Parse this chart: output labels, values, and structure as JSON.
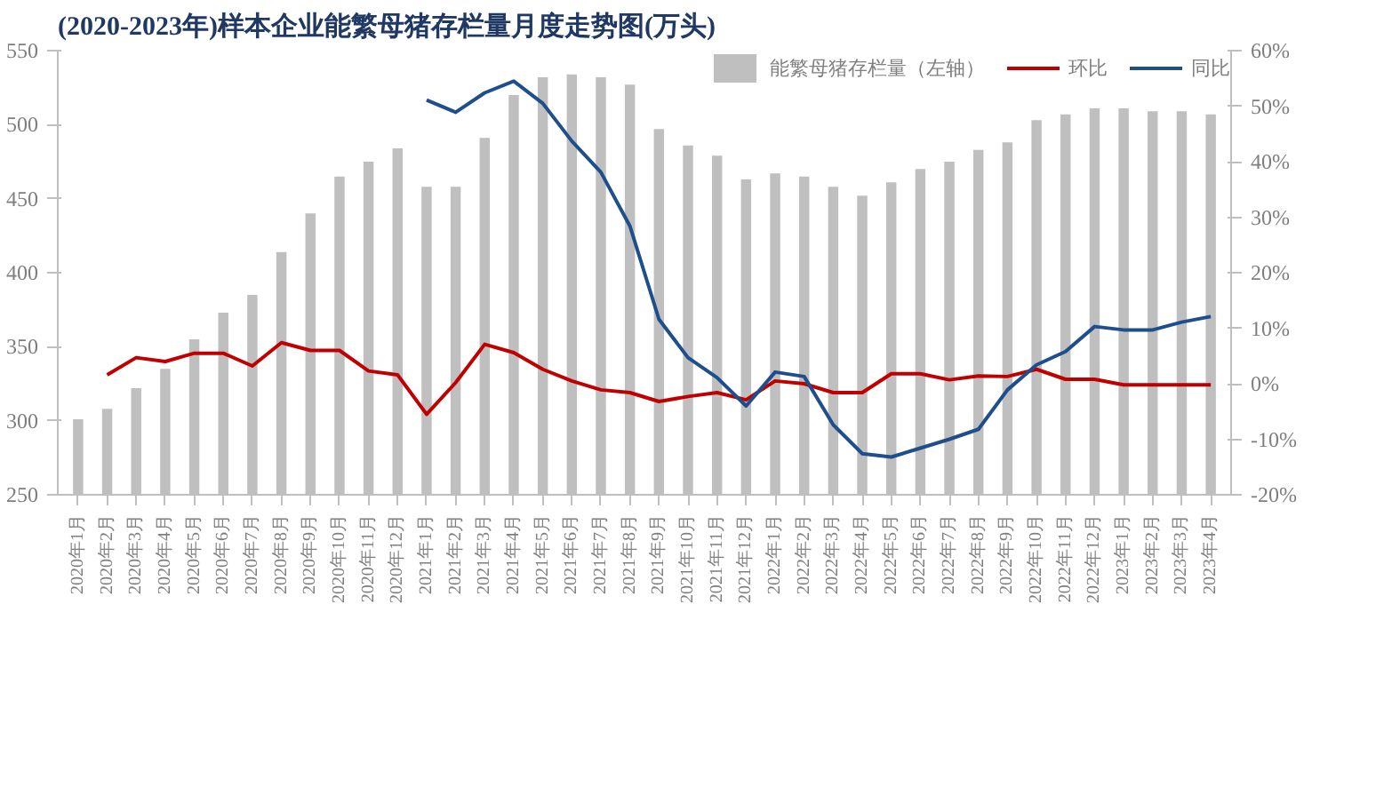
{
  "chart_data": {
    "type": "bar",
    "title": "(2020-2023年)样本企业能繁母猪存栏量月度走势图(万头)",
    "categories": [
      "2020年1月",
      "2020年2月",
      "2020年3月",
      "2020年4月",
      "2020年5月",
      "2020年6月",
      "2020年7月",
      "2020年8月",
      "2020年9月",
      "2020年10月",
      "2020年11月",
      "2020年12月",
      "2021年1月",
      "2021年2月",
      "2021年3月",
      "2021年4月",
      "2021年5月",
      "2021年6月",
      "2021年7月",
      "2021年8月",
      "2021年9月",
      "2021年10月",
      "2021年11月",
      "2021年12月",
      "2022年1月",
      "2022年2月",
      "2022年3月",
      "2022年4月",
      "2022年5月",
      "2022年6月",
      "2022年7月",
      "2022年8月",
      "2022年9月",
      "2022年10月",
      "2022年11月",
      "2022年12月",
      "2023年1月",
      "2023年2月",
      "2023年3月",
      "2023年4月"
    ],
    "series": [
      {
        "name": "能繁母猪存栏量（左轴）",
        "color": "#bfbfbf",
        "values": [
          301,
          308,
          322,
          335,
          355,
          373,
          385,
          414,
          440,
          465,
          475,
          484,
          458,
          458,
          491,
          520,
          532,
          534,
          532,
          527,
          497,
          486,
          479,
          463,
          467,
          465,
          458,
          452,
          461,
          470,
          475,
          483,
          488,
          503,
          507,
          511,
          511,
          509,
          509,
          507
        ]
      },
      {
        "name": "环比",
        "type": "line",
        "axis": "y2",
        "color": "#c00000",
        "values": [
          null,
          1.6,
          4.7,
          4.0,
          5.5,
          5.5,
          3.2,
          7.4,
          6.0,
          6.0,
          2.3,
          1.6,
          -5.5,
          0.2,
          7.1,
          5.6,
          2.6,
          0.5,
          -1.1,
          -1.6,
          -3.2,
          -2.3,
          -1.6,
          -2.9,
          0.5,
          0,
          -1.6,
          -1.6,
          1.8,
          1.8,
          0.7,
          1.4,
          1.3,
          2.6,
          0.8,
          0.8,
          -0.2,
          -0.2,
          -0.2,
          -0.2
        ]
      },
      {
        "name": "同比",
        "type": "line",
        "axis": "y2",
        "color": "#1f4e8c",
        "values": [
          null,
          null,
          null,
          null,
          null,
          null,
          null,
          null,
          null,
          null,
          null,
          null,
          51.1,
          48.9,
          52.4,
          54.5,
          50.5,
          43.7,
          38.1,
          28.4,
          11.6,
          4.7,
          1.1,
          -4.0,
          2.1,
          1.3,
          -7.4,
          -12.6,
          -13.2,
          -11.6,
          -10.0,
          -8.2,
          -1.1,
          3.4,
          5.8,
          10.3,
          9.7,
          9.7,
          11.1,
          12.1
        ]
      }
    ],
    "ylim": [
      250,
      550
    ],
    "yticks": [
      250,
      300,
      350,
      400,
      450,
      500,
      550
    ],
    "y2lim": [
      -20,
      60
    ],
    "y2ticks": [
      {
        "value": -20,
        "label": "-20%"
      },
      {
        "value": -10,
        "label": "-10%"
      },
      {
        "value": 0,
        "label": "0%"
      },
      {
        "value": 10,
        "label": "10%"
      },
      {
        "value": 20,
        "label": "20%"
      },
      {
        "value": 30,
        "label": "30%"
      },
      {
        "value": 40,
        "label": "40%"
      },
      {
        "value": 50,
        "label": "50%"
      },
      {
        "value": 60,
        "label": "60%"
      }
    ],
    "legend": "top right",
    "grid": false,
    "line_style": "solid",
    "marker": "none"
  }
}
